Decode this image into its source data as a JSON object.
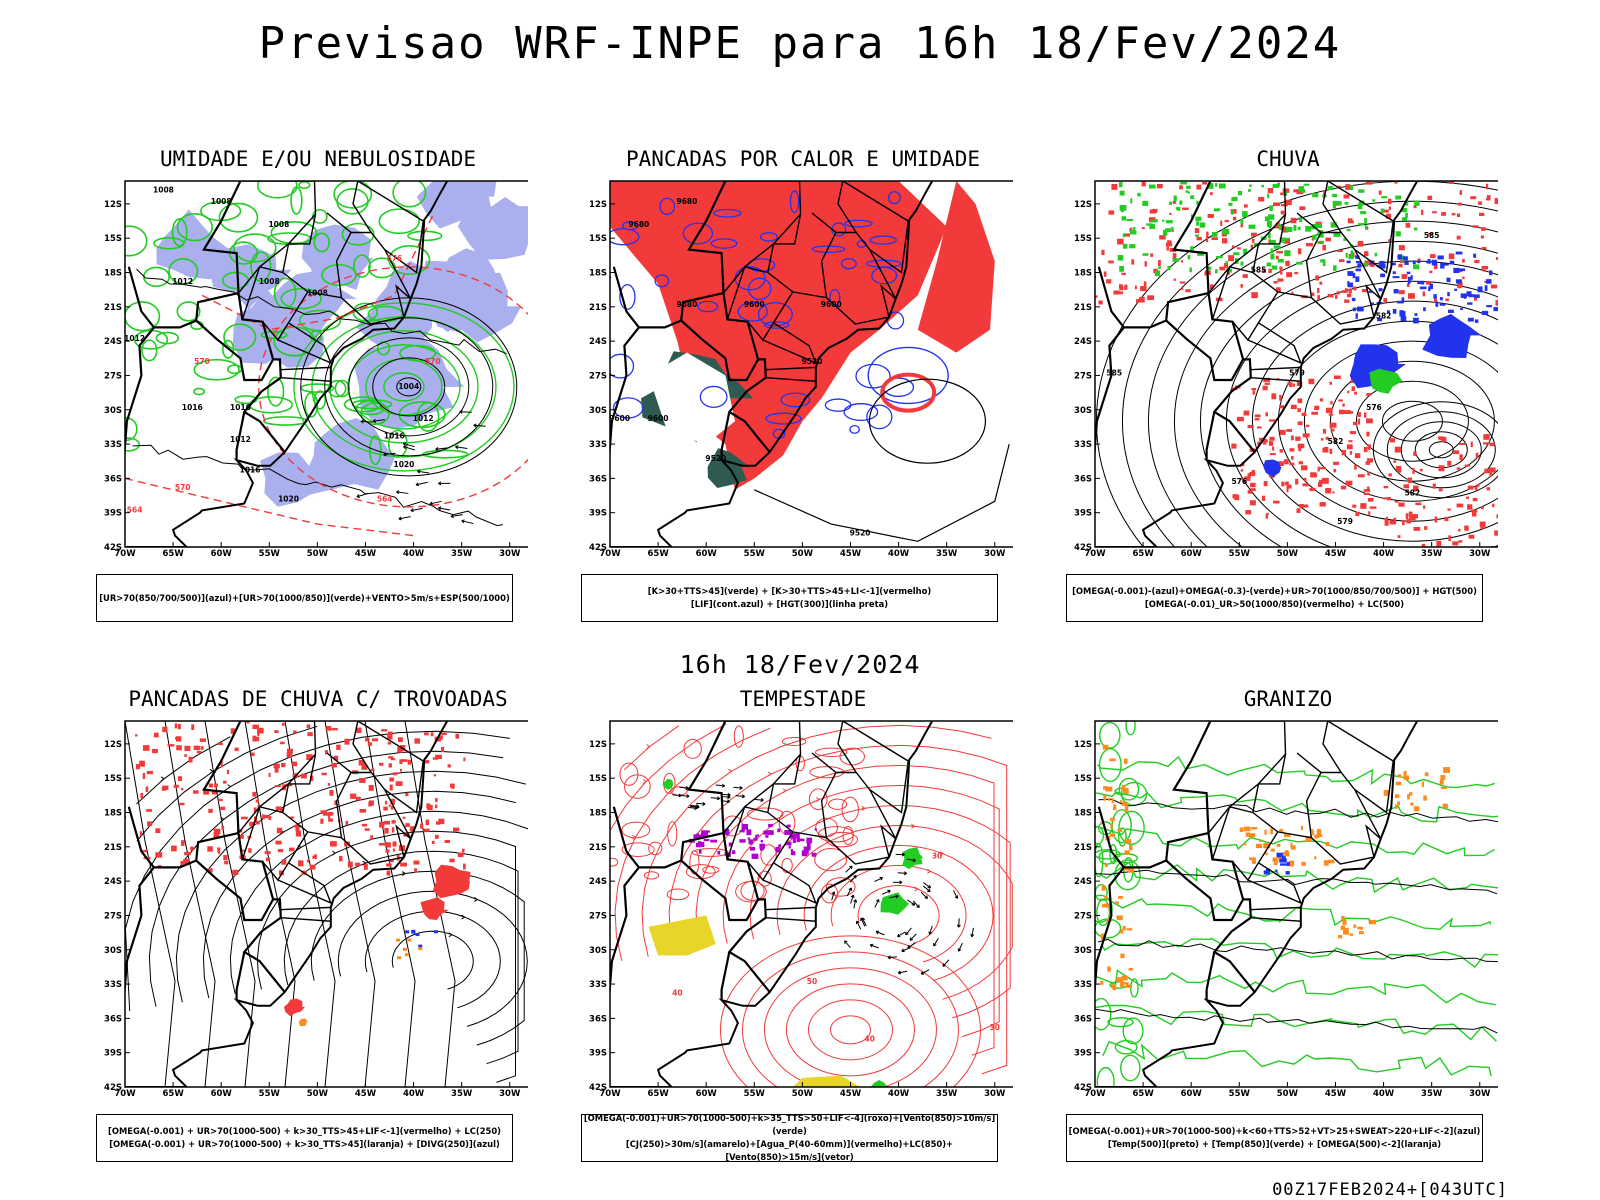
{
  "title": "Previsao WRF-INPE  para 16h 18/Fev/2024",
  "middle_label": "16h 18/Fev/2024",
  "footer": "00Z17FEB2024+[043UTC]",
  "lat_ticks": [
    "12S",
    "15S",
    "18S",
    "21S",
    "24S",
    "27S",
    "30S",
    "33S",
    "36S",
    "39S",
    "42S"
  ],
  "lon_ticks": [
    "70W",
    "65W",
    "60W",
    "55W",
    "50W",
    "45W",
    "40W",
    "35W",
    "30W"
  ],
  "colors": {
    "red": "#f23a3a",
    "green": "#22cc22",
    "blue": "#2233ee",
    "lavender": "#aab0ee",
    "darkteal": "#2f5a52",
    "orange": "#ff8a1e",
    "yellow": "#e8d52a",
    "purple": "#b000d0"
  },
  "panels": [
    {
      "name": "umidade",
      "title": "UMIDADE E/OU NEBULOSIDADE",
      "legend": [
        "[UR>70(850/700/500)](azul)+[UR>70(1000/850)](verde)+VENTO>5m/s+ESP(500/1000)"
      ],
      "labels": [
        "1008",
        "1008",
        "1008",
        "1008",
        "1008",
        "1012",
        "1012",
        "1016",
        "1016",
        "1020",
        "1004",
        "1012",
        "1016",
        "1012",
        "1016",
        "1020",
        "564",
        "570",
        "576",
        "570",
        "564",
        "570"
      ]
    },
    {
      "name": "pancadas-calor",
      "title": "PANCADAS POR CALOR E UMIDADE",
      "legend": [
        "[K>30+TTS>45](verde) + [K>30+TTS>45+LI<-1](vermelho)",
        "[LIF](cont.azul) + [HGT(300)](linha preta)"
      ],
      "labels": [
        "9680",
        "9680",
        "9680",
        "9600",
        "9600",
        "9520",
        "9600",
        "9600",
        "9520",
        "9520"
      ]
    },
    {
      "name": "chuva",
      "title": "CHUVA",
      "legend": [
        "[OMEGA(-0.001)-(azul)+OMEGA(-0.3)-(verde)+UR>70(1000/850/700/500)] + HGT(500)",
        "[OMEGA(-0.01)_UR>50(1000/850)(vermelho) + LC(500)"
      ],
      "labels": [
        "585",
        "585",
        "582",
        "579",
        "576",
        "582",
        "576",
        "582",
        "579",
        "585"
      ]
    },
    {
      "name": "trovoadas",
      "title": "PANCADAS DE CHUVA C/ TROVOADAS",
      "legend": [
        "[OMEGA(-0.001) + UR>70(1000-500) + k>30_TTS>45+LIF<-1](vermelho) + LC(250)",
        "[OMEGA(-0.001) + UR>70(1000-500) + k>30_TTS>45](laranja) + [DIVG(250)](azul)"
      ],
      "labels": []
    },
    {
      "name": "tempestade",
      "title": "TEMPESTADE",
      "legend": [
        "[OMEGA(-0.001)+UR>70(1000-500)+k>35_TTS>50+LIF<-4](roxo)+[Vento(850)>10m/s](verde)",
        "[CJ(250)>30m/s](amarelo)+[Agua_P(40-60mm)](vermelho)+LC(850)+[Vento(850)>15m/s](vetor)"
      ],
      "labels": [
        "30",
        "40",
        "50",
        "40",
        "30"
      ]
    },
    {
      "name": "granizo",
      "title": "GRANIZO",
      "legend": [
        "[OMEGA(-0.001)+UR>70(1000-500)+k<60+TTS>52+VT>25+SWEAT>220+LIF<-2](azul)",
        "[Temp(500)](preto) + [Temp(850)](verde) + [OMEGA(500)<-2](laranja)"
      ],
      "labels": []
    }
  ]
}
